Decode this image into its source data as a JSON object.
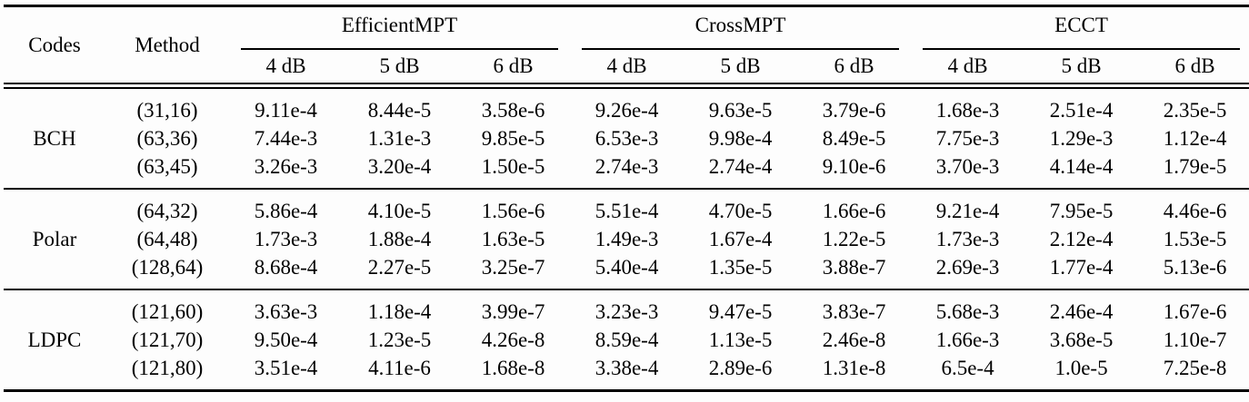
{
  "header": {
    "codes": "Codes",
    "method": "Method",
    "groups": [
      "EfficientMPT",
      "CrossMPT",
      "ECCT"
    ],
    "snr": [
      "4 dB",
      "5 dB",
      "6 dB"
    ]
  },
  "body": {
    "sections": [
      {
        "code": "BCH",
        "rows": [
          {
            "method": "(31,16)",
            "values": [
              "9.11e-4",
              "8.44e-5",
              "3.58e-6",
              "9.26e-4",
              "9.63e-5",
              "3.79e-6",
              "1.68e-3",
              "2.51e-4",
              "2.35e-5"
            ]
          },
          {
            "method": "(63,36)",
            "values": [
              "7.44e-3",
              "1.31e-3",
              "9.85e-5",
              "6.53e-3",
              "9.98e-4",
              "8.49e-5",
              "7.75e-3",
              "1.29e-3",
              "1.12e-4"
            ]
          },
          {
            "method": "(63,45)",
            "values": [
              "3.26e-3",
              "3.20e-4",
              "1.50e-5",
              "2.74e-3",
              "2.74e-4",
              "9.10e-6",
              "3.70e-3",
              "4.14e-4",
              "1.79e-5"
            ]
          }
        ]
      },
      {
        "code": "Polar",
        "rows": [
          {
            "method": "(64,32)",
            "values": [
              "5.86e-4",
              "4.10e-5",
              "1.56e-6",
              "5.51e-4",
              "4.70e-5",
              "1.66e-6",
              "9.21e-4",
              "7.95e-5",
              "4.46e-6"
            ]
          },
          {
            "method": "(64,48)",
            "values": [
              "1.73e-3",
              "1.88e-4",
              "1.63e-5",
              "1.49e-3",
              "1.67e-4",
              "1.22e-5",
              "1.73e-3",
              "2.12e-4",
              "1.53e-5"
            ]
          },
          {
            "method": "(128,64)",
            "values": [
              "8.68e-4",
              "2.27e-5",
              "3.25e-7",
              "5.40e-4",
              "1.35e-5",
              "3.88e-7",
              "2.69e-3",
              "1.77e-4",
              "5.13e-6"
            ]
          }
        ]
      },
      {
        "code": "LDPC",
        "rows": [
          {
            "method": "(121,60)",
            "values": [
              "3.63e-3",
              "1.18e-4",
              "3.99e-7",
              "3.23e-3",
              "9.47e-5",
              "3.83e-7",
              "5.68e-3",
              "2.46e-4",
              "1.67e-6"
            ]
          },
          {
            "method": "(121,70)",
            "values": [
              "9.50e-4",
              "1.23e-5",
              "4.26e-8",
              "8.59e-4",
              "1.13e-5",
              "2.46e-8",
              "1.66e-3",
              "3.68e-5",
              "1.10e-7"
            ]
          },
          {
            "method": "(121,80)",
            "values": [
              "3.51e-4",
              "4.11e-6",
              "1.68e-8",
              "3.38e-4",
              "2.89e-6",
              "1.31e-8",
              "6.5e-4",
              "1.0e-5",
              "7.25e-8"
            ]
          }
        ]
      }
    ]
  }
}
